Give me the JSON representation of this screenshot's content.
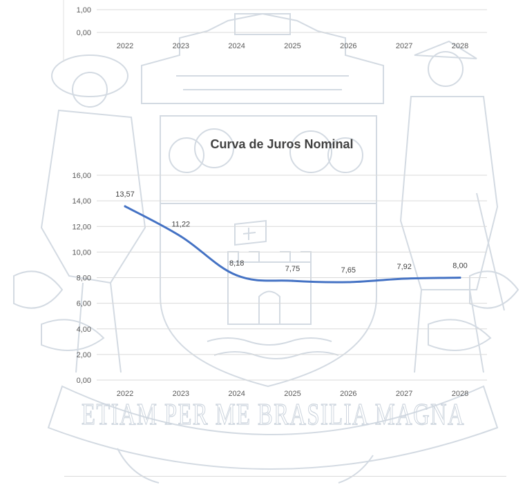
{
  "watermark": {
    "motto": "ETIAM PER ME BRASILIA MAGNA",
    "color": "#cfd6df"
  },
  "chart_data": [
    {
      "type": "line",
      "partial": true,
      "categories": [
        "2022",
        "2023",
        "2024",
        "2025",
        "2026",
        "2027",
        "2028"
      ],
      "y_ticks": [
        "1,00",
        "0,00"
      ],
      "ylim": [
        0,
        1.5
      ]
    },
    {
      "type": "line",
      "title": "Curva de Juros Nominal",
      "categories": [
        "2022",
        "2023",
        "2024",
        "2025",
        "2026",
        "2027",
        "2028"
      ],
      "series": [
        {
          "values": [
            13.57,
            11.22,
            8.18,
            7.75,
            7.65,
            7.92,
            8.0
          ],
          "labels": [
            "13,57",
            "11,22",
            "8,18",
            "7,75",
            "7,65",
            "7,92",
            "8,00"
          ],
          "color": "#4472c4"
        }
      ],
      "y_ticks": [
        "0,00",
        "2,00",
        "4,00",
        "6,00",
        "8,00",
        "10,00",
        "12,00",
        "14,00",
        "16,00"
      ],
      "ylim": [
        0,
        16
      ],
      "grid": true,
      "legend": "none"
    }
  ]
}
